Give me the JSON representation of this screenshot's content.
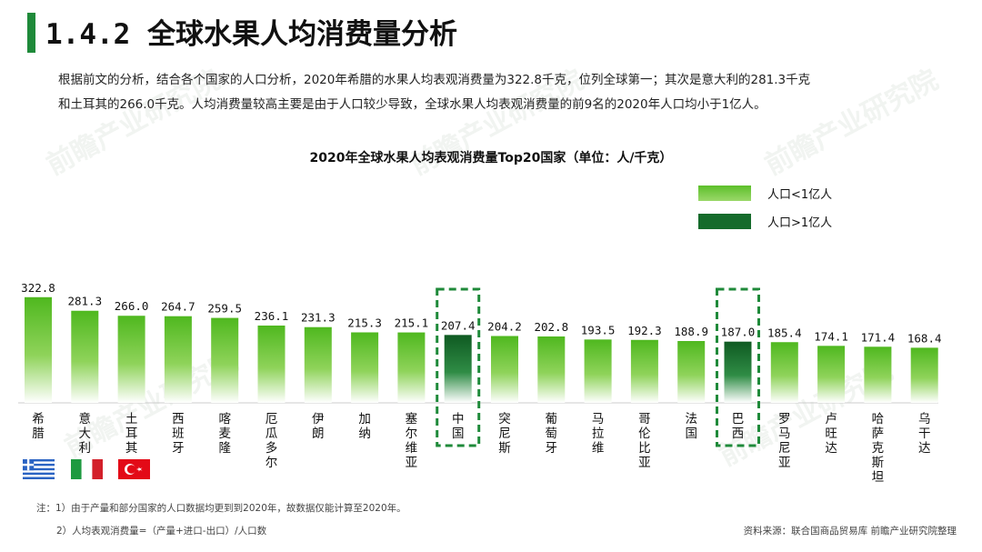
{
  "header": {
    "title": "1.4.2 全球水果人均消费量分析"
  },
  "intro": {
    "line1": "根据前文的分析，结合各个国家的人口分析，2020年希腊的水果人均表观消费量为322.8千克，位列全球第一；其次是意大利的281.3千克",
    "line2": "和土耳其的266.0千克。人均消费量较高主要是由于人口较少导致，全球水果人均表观消费量的前9名的2020年人口均小于1亿人。"
  },
  "legend": {
    "small_label": "人口<1亿人",
    "large_label": "人口>1亿人",
    "small_color": "#5cbf2a",
    "large_color": "#156b2b"
  },
  "chart_data": {
    "type": "bar",
    "title": "2020年全球水果人均表观消费量Top20国家（单位：人/千克）",
    "categories": [
      "希腊",
      "意大利",
      "土耳其",
      "西班牙",
      "喀麦隆",
      "厄瓜多尔",
      "伊朗",
      "加纳",
      "塞尔维亚",
      "中国",
      "突尼斯",
      "葡萄牙",
      "马拉维",
      "哥伦比亚",
      "法国",
      "巴西",
      "罗马尼亚",
      "卢旺达",
      "哈萨克斯坦",
      "乌干达"
    ],
    "values": [
      322.8,
      281.3,
      266.0,
      264.7,
      259.5,
      236.1,
      231.3,
      215.3,
      215.1,
      207.4,
      204.2,
      202.8,
      193.5,
      192.3,
      188.9,
      187.0,
      185.4,
      174.1,
      171.4,
      168.4
    ],
    "value_labels": [
      "322.8",
      "281.3",
      "266.0",
      "264.7",
      "259.5",
      "236.1",
      "231.3",
      "215.3",
      "215.1",
      "207.4",
      "204.2",
      "202.8",
      "193.5",
      "192.3",
      "188.9",
      "187.0",
      "185.4",
      "174.1",
      "171.4",
      "168.4"
    ],
    "population_group": [
      "<1亿",
      "<1亿",
      "<1亿",
      "<1亿",
      "<1亿",
      "<1亿",
      "<1亿",
      "<1亿",
      "<1亿",
      ">1亿",
      "<1亿",
      "<1亿",
      "<1亿",
      "<1亿",
      "<1亿",
      ">1亿",
      "<1亿",
      "<1亿",
      "<1亿",
      "<1亿"
    ],
    "highlighted": [
      "中国",
      "巴西"
    ],
    "ylim": [
      0,
      340
    ],
    "legend_position": "top-right"
  },
  "flags": {
    "greece": "希腊国旗",
    "italy": "意大利国旗",
    "turkey": "土耳其国旗"
  },
  "notes": {
    "note1": "注：1）由于产量和部分国家的人口数据均更到到2020年，故数据仅能计算至2020年。",
    "note2": "2）人均表观消费量=（产量+进口-出口）/人口数"
  },
  "source": "资料来源：联合国商品贸易库 前瞻产业研究院整理",
  "watermark": "前瞻产业研究院"
}
